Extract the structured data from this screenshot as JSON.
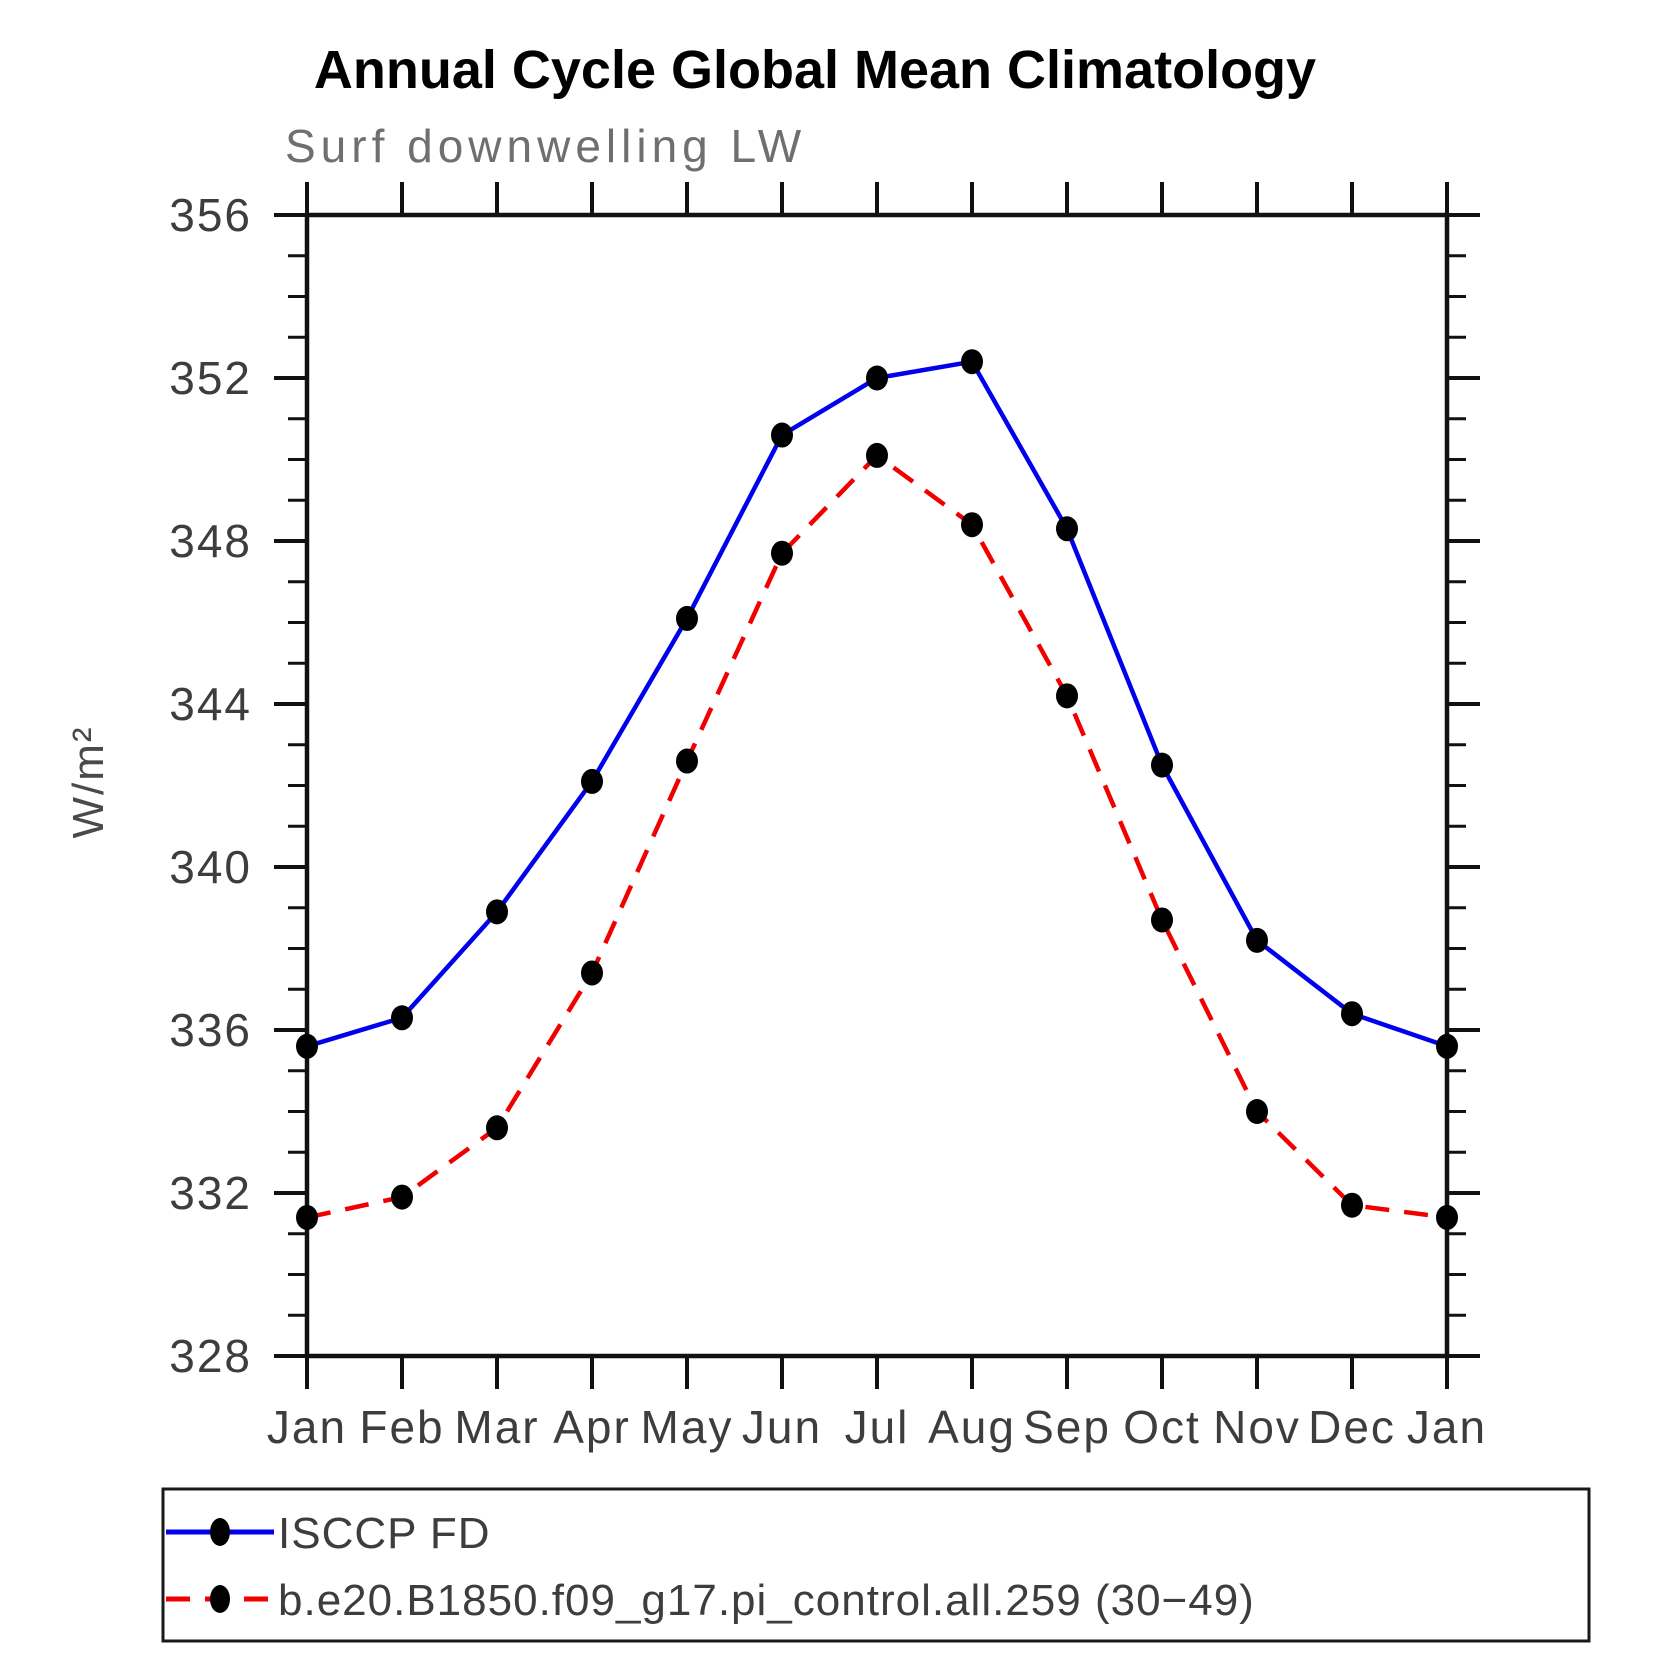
{
  "header": {
    "title": "Annual Cycle Global Mean Climatology",
    "subtitle": "Surf downwelling LW"
  },
  "axes": {
    "y_label": "W/m²",
    "y_tick_labels": [
      "328",
      "332",
      "336",
      "340",
      "344",
      "348",
      "352",
      "356"
    ],
    "x_tick_labels": [
      "Jan",
      "Feb",
      "Mar",
      "Apr",
      "May",
      "Jun",
      "Jul",
      "Aug",
      "Sep",
      "Oct",
      "Nov",
      "Dec",
      "Jan"
    ]
  },
  "chart_data": {
    "type": "line",
    "title": "Annual Cycle Global Mean Climatology",
    "subtitle": "Surf downwelling LW",
    "xlabel": "",
    "ylabel": "W/m²",
    "categories": [
      "Jan",
      "Feb",
      "Mar",
      "Apr",
      "May",
      "Jun",
      "Jul",
      "Aug",
      "Sep",
      "Oct",
      "Nov",
      "Dec",
      "Jan"
    ],
    "ylim": [
      328,
      356
    ],
    "y_major_ticks": [
      328,
      332,
      336,
      340,
      344,
      348,
      352,
      356
    ],
    "y_minor_tick_interval": 1,
    "grid": false,
    "legend_position": "bottom-left",
    "series": [
      {
        "name": "ISCCP FD",
        "color": "#0000ee",
        "line_style": "solid",
        "marker": "filled-black-ellipse",
        "values": [
          335.6,
          336.3,
          338.9,
          342.1,
          346.1,
          350.6,
          352.0,
          352.4,
          348.3,
          342.5,
          338.2,
          336.4,
          335.6
        ]
      },
      {
        "name": "b.e20.B1850.f09_g17.pi_control.all.259 (30−49)",
        "color": "#f20000",
        "line_style": "dashed",
        "marker": "filled-black-ellipse",
        "values": [
          331.4,
          331.9,
          333.6,
          337.4,
          342.6,
          347.7,
          350.1,
          348.4,
          344.2,
          338.7,
          334.0,
          331.7,
          331.4
        ]
      }
    ]
  },
  "colors": {
    "axis": "#111111",
    "marker": "#000000",
    "series_blue": "#0000ee",
    "series_red": "#f20000"
  }
}
